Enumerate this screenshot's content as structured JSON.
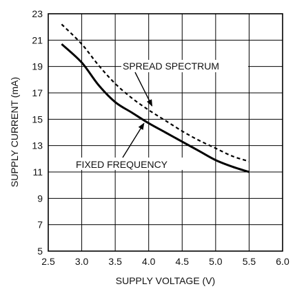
{
  "chart_data": {
    "type": "line",
    "title": "",
    "xlabel": "SUPPLY VOLTAGE (V)",
    "ylabel": "SUPPLY CURRENT (mA)",
    "xlim": [
      2.5,
      6.0
    ],
    "ylim": [
      5,
      23
    ],
    "x_ticks": [
      "2.5",
      "3.0",
      "3.5",
      "4.0",
      "4.5",
      "5.0",
      "5.5",
      "6.0"
    ],
    "y_ticks": [
      "5",
      "7",
      "9",
      "11",
      "13",
      "15",
      "17",
      "19",
      "21",
      "23"
    ],
    "grid": true,
    "series": [
      {
        "name": "SPREAD SPECTRUM",
        "style": "dashed",
        "color": "#000000",
        "x": [
          2.7,
          3.0,
          3.25,
          3.5,
          3.75,
          4.0,
          4.25,
          4.5,
          4.75,
          5.0,
          5.25,
          5.5
        ],
        "y": [
          22.2,
          20.7,
          19.1,
          17.7,
          16.6,
          15.7,
          14.9,
          14.1,
          13.4,
          12.8,
          12.2,
          11.8
        ]
      },
      {
        "name": "FIXED FREQUENCY",
        "style": "solid",
        "color": "#000000",
        "x": [
          2.7,
          3.0,
          3.25,
          3.5,
          3.75,
          4.0,
          4.25,
          4.5,
          4.75,
          5.0,
          5.25,
          5.5
        ],
        "y": [
          20.7,
          19.3,
          17.6,
          16.3,
          15.5,
          14.7,
          14.0,
          13.3,
          12.6,
          11.9,
          11.4,
          11.0
        ]
      }
    ],
    "annotations": [
      {
        "text": "SPREAD SPECTRUM",
        "target_series": 0,
        "arrow_to_x": 4.05,
        "arrow_to_y": 15.8
      },
      {
        "text": "FIXED FREQUENCY",
        "target_series": 1,
        "arrow_to_x": 3.95,
        "arrow_to_y": 14.85
      }
    ]
  }
}
